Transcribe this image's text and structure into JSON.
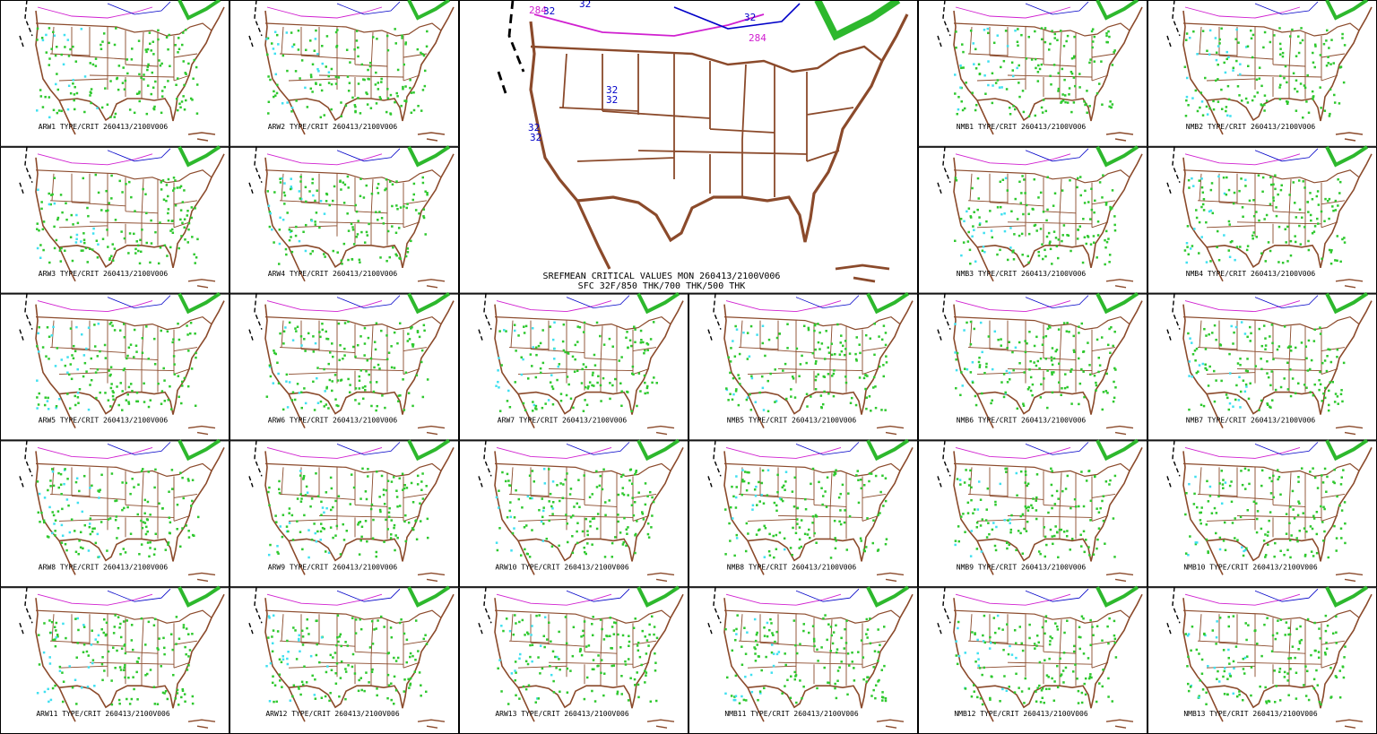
{
  "panels": [
    {
      "label": "ARW1 TYPE/CRIT 260413/2100V006"
    },
    {
      "label": "ARW2 TYPE/CRIT 260413/2100V006"
    },
    {
      "label": "NMB1 TYPE/CRIT 260413/2100V006"
    },
    {
      "label": "NMB2 TYPE/CRIT 260413/2100V006"
    },
    {
      "label": "ARW3 TYPE/CRIT 260413/2100V006"
    },
    {
      "label": "ARW4 TYPE/CRIT 260413/2100V006"
    },
    {
      "label": "NMB3 TYPE/CRIT 260413/2100V006"
    },
    {
      "label": "NMB4 TYPE/CRIT 260413/2100V006"
    },
    {
      "label": "ARW5 TYPE/CRIT 260413/2100V006"
    },
    {
      "label": "ARW6 TYPE/CRIT 260413/2100V006"
    },
    {
      "label": "ARW7 TYPE/CRIT 260413/2100V006"
    },
    {
      "label": "NMB5 TYPE/CRIT 260413/2100V006"
    },
    {
      "label": "NMB6 TYPE/CRIT 260413/2100V006"
    },
    {
      "label": "NMB7 TYPE/CRIT 260413/2100V006"
    },
    {
      "label": "ARW8 TYPE/CRIT 260413/2100V006"
    },
    {
      "label": "ARW9 TYPE/CRIT 260413/2100V006"
    },
    {
      "label": "ARW10 TYPE/CRIT 260413/2100V006"
    },
    {
      "label": "NMB8 TYPE/CRIT 260413/2100V006"
    },
    {
      "label": "NMB9 TYPE/CRIT 260413/2100V006"
    },
    {
      "label": "NMB10 TYPE/CRIT 260413/2100V006"
    },
    {
      "label": "ARW11 TYPE/CRIT 260413/2100V006"
    },
    {
      "label": "ARW12 TYPE/CRIT 260413/2100V006"
    },
    {
      "label": "ARW13 TYPE/CRIT 260413/2100V006"
    },
    {
      "label": "NMB11 TYPE/CRIT 260413/2100V006"
    },
    {
      "label": "NMB12 TYPE/CRIT 260413/2100V006"
    },
    {
      "label": "NMB13 TYPE/CRIT 260413/2100V006"
    }
  ],
  "main_panel": {
    "title": "SREFMEAN CRITICAL VALUES MON 260413/2100V006",
    "subtitle": "SFC 32F/850 THK/700 THK/500 THK",
    "contour_labels": [
      "284",
      "32",
      "32",
      "32",
      "284",
      "32",
      "32",
      "32",
      "32"
    ]
  }
}
